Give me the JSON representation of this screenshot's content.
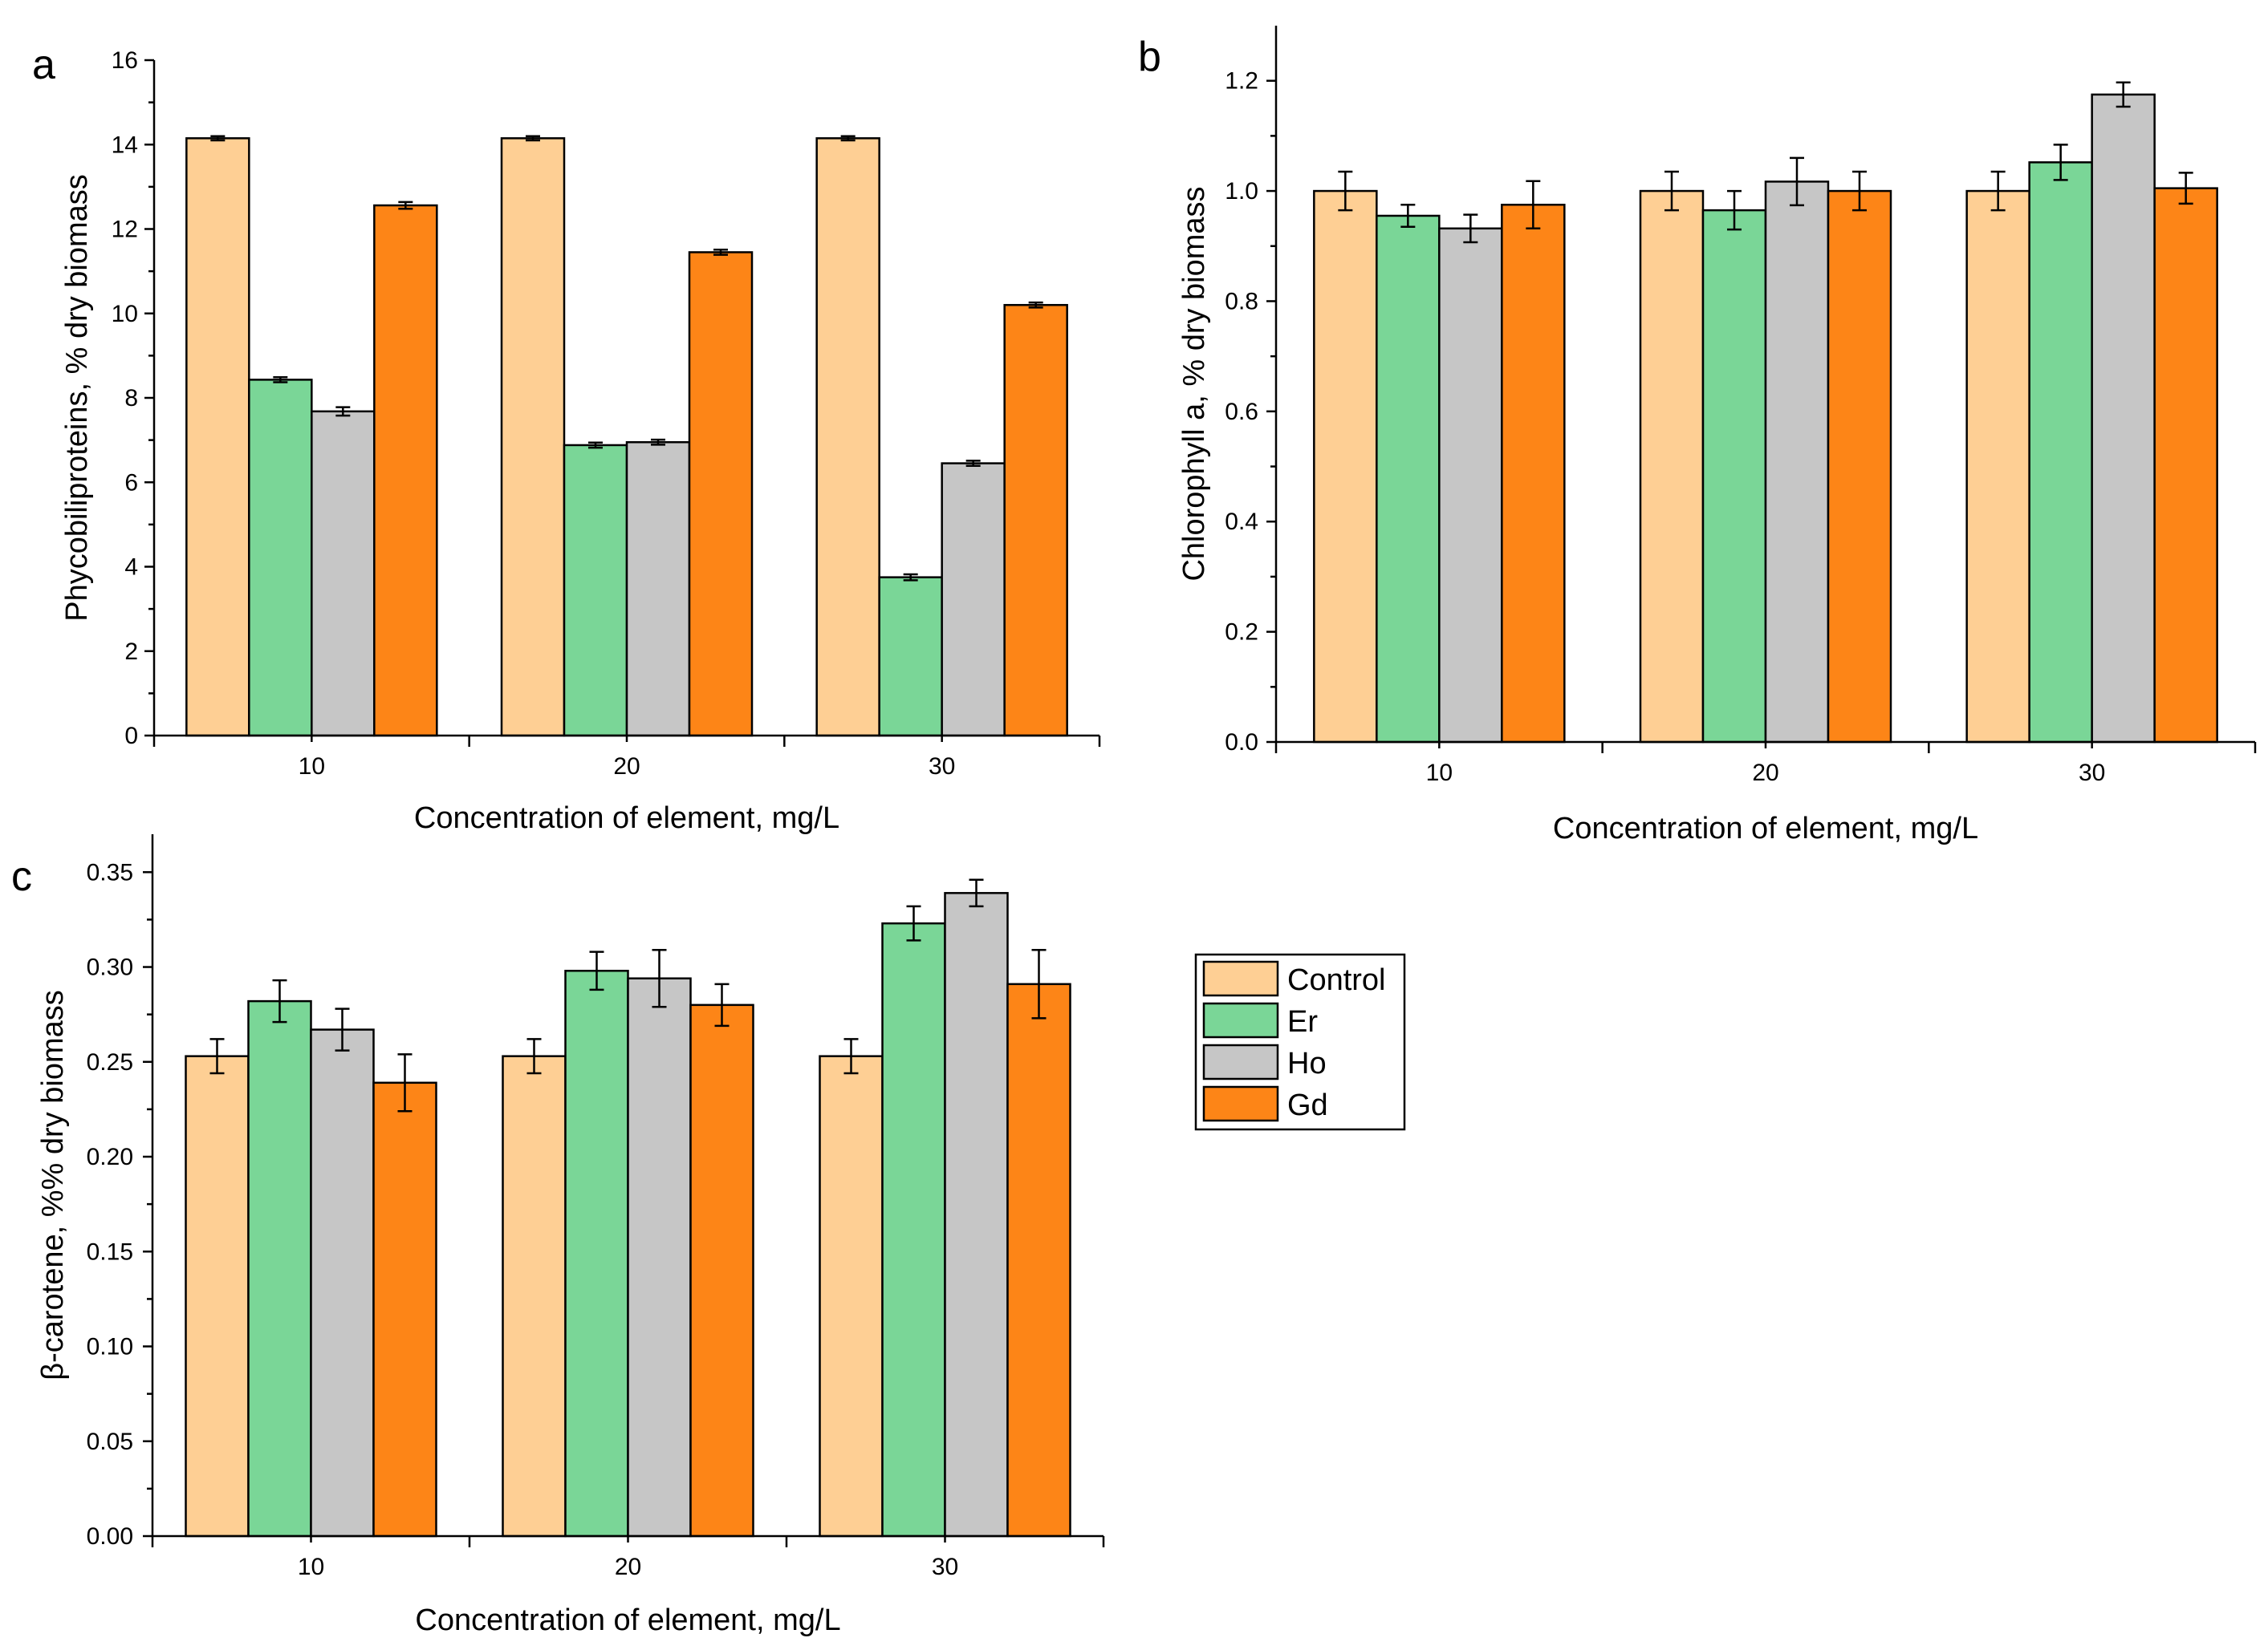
{
  "chart_data": [
    {
      "panel": "a",
      "type": "bar",
      "title": "",
      "xlabel": "Concentration of element, mg/L",
      "ylabel": "Phycobiliproteins, % dry biomass",
      "categories": [
        "10",
        "20",
        "30"
      ],
      "ylim": [
        0,
        16
      ],
      "yticks": [
        "0",
        "2",
        "4",
        "6",
        "8",
        "10",
        "12",
        "14",
        "16"
      ],
      "series": [
        {
          "name": "Control",
          "values": [
            14.15,
            14.15,
            14.15
          ],
          "errors": [
            0.05,
            0.05,
            0.05
          ]
        },
        {
          "name": "Er",
          "values": [
            8.43,
            6.88,
            3.75
          ],
          "errors": [
            0.06,
            0.06,
            0.07
          ]
        },
        {
          "name": "Ho",
          "values": [
            7.68,
            6.95,
            6.45
          ],
          "errors": [
            0.1,
            0.06,
            0.06
          ]
        },
        {
          "name": "Gd",
          "values": [
            12.56,
            11.45,
            10.2
          ],
          "errors": [
            0.08,
            0.06,
            0.06
          ]
        }
      ]
    },
    {
      "panel": "b",
      "type": "bar",
      "title": "",
      "xlabel": "Concentration of element, mg/L",
      "ylabel": "Chlorophyll a, % dry biomass",
      "categories": [
        "10",
        "20",
        "30"
      ],
      "ylim": [
        0,
        1.3
      ],
      "yticks": [
        "0.0",
        "0.2",
        "0.4",
        "0.6",
        "0.8",
        "1.0",
        "1.2"
      ],
      "series": [
        {
          "name": "Control",
          "values": [
            1.0,
            1.0,
            1.0
          ],
          "errors": [
            0.035,
            0.035,
            0.035
          ]
        },
        {
          "name": "Er",
          "values": [
            0.955,
            0.965,
            1.052
          ],
          "errors": [
            0.02,
            0.035,
            0.032
          ]
        },
        {
          "name": "Ho",
          "values": [
            0.932,
            1.017,
            1.175
          ],
          "errors": [
            0.025,
            0.043,
            0.022
          ]
        },
        {
          "name": "Gd",
          "values": [
            0.975,
            1.0,
            1.005
          ],
          "errors": [
            0.043,
            0.035,
            0.028
          ]
        }
      ]
    },
    {
      "panel": "c",
      "type": "bar",
      "title": "",
      "xlabel": "Concentration of element, mg/L",
      "ylabel": "β-carotene, %% dry biomass",
      "categories": [
        "10",
        "20",
        "30"
      ],
      "ylim": [
        0,
        0.37
      ],
      "yticks": [
        "0.00",
        "0.05",
        "0.10",
        "0.15",
        "0.20",
        "0.25",
        "0.30",
        "0.35"
      ],
      "series": [
        {
          "name": "Control",
          "values": [
            0.253,
            0.253,
            0.253
          ],
          "errors": [
            0.009,
            0.009,
            0.009
          ]
        },
        {
          "name": "Er",
          "values": [
            0.282,
            0.298,
            0.323
          ],
          "errors": [
            0.011,
            0.01,
            0.009
          ]
        },
        {
          "name": "Ho",
          "values": [
            0.267,
            0.294,
            0.339
          ],
          "errors": [
            0.011,
            0.015,
            0.007
          ]
        },
        {
          "name": "Gd",
          "values": [
            0.239,
            0.28,
            0.291
          ],
          "errors": [
            0.015,
            0.011,
            0.018
          ]
        }
      ]
    }
  ],
  "panel_letters": {
    "a": "a",
    "b": "b",
    "c": "c"
  },
  "legend": {
    "entries": [
      {
        "label": "Control",
        "color": "#fecf94"
      },
      {
        "label": "Er",
        "color": "#7ad697"
      },
      {
        "label": "Ho",
        "color": "#c6c6c6"
      },
      {
        "label": "Gd",
        "color": "#fd8517"
      }
    ]
  }
}
